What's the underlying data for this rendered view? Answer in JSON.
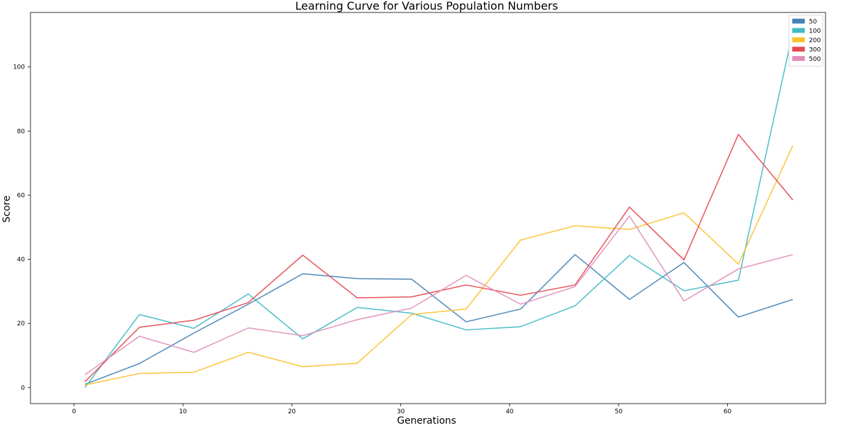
{
  "chart_data": {
    "type": "line",
    "title": "Learning Curve for Various Population Numbers",
    "xlabel": "Generations",
    "ylabel": "Score",
    "xlim": [
      -4,
      69
    ],
    "ylim": [
      -5,
      117
    ],
    "xticks": [
      0,
      10,
      20,
      30,
      40,
      50,
      60
    ],
    "yticks": [
      0,
      20,
      40,
      60,
      80,
      100
    ],
    "grid": false,
    "legend_position": "top-right",
    "x": [
      1,
      6,
      11,
      16,
      21,
      26,
      31,
      36,
      41,
      46,
      51,
      56,
      61,
      66
    ],
    "series": [
      {
        "name": "50",
        "color": "#4682b4",
        "values": [
          1,
          7.5,
          17,
          26,
          35.5,
          34,
          33.8,
          20.5,
          24.5,
          41.5,
          27.5,
          39,
          22,
          27.5
        ]
      },
      {
        "name": "100",
        "color": "#40bac6",
        "values": [
          0,
          22.8,
          18.5,
          29.2,
          15.2,
          25,
          23.2,
          18,
          19,
          25.5,
          41.2,
          30.2,
          33.5,
          111
        ]
      },
      {
        "name": "200",
        "color": "#f9c12b",
        "values": [
          0.8,
          4.4,
          4.8,
          11,
          6.5,
          7.6,
          22.8,
          24.5,
          46,
          50.5,
          49.3,
          54.5,
          38.5,
          75.5
        ]
      },
      {
        "name": "300",
        "color": "#e44a52",
        "values": [
          1.8,
          18.8,
          21,
          26.5,
          41.3,
          28,
          28.3,
          32,
          28.8,
          32,
          56.3,
          39.8,
          79,
          58.5
        ]
      },
      {
        "name": "500",
        "color": "#e08fb9",
        "values": [
          4,
          16,
          11,
          18.6,
          16.2,
          21.2,
          24.8,
          35,
          26,
          31.5,
          53.5,
          27,
          37,
          41.5
        ]
      }
    ]
  }
}
